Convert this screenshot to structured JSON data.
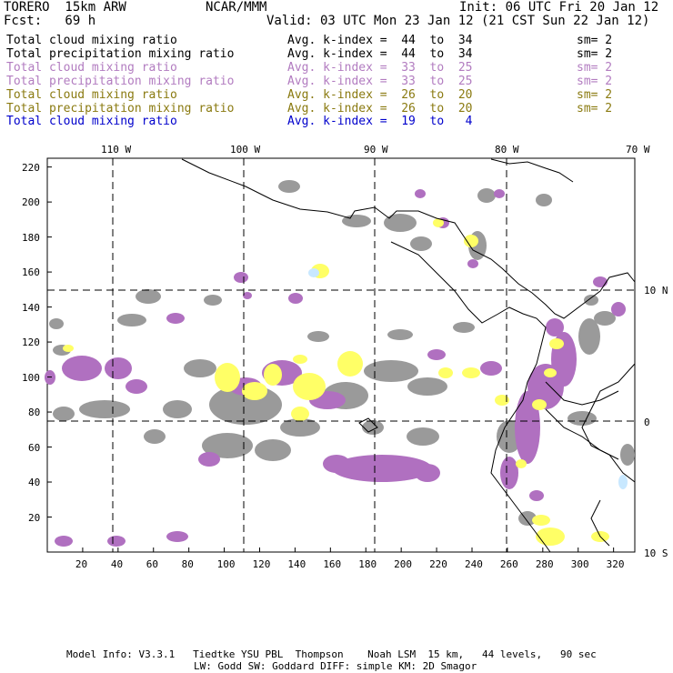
{
  "header": {
    "model": "TORERO  15km ARW",
    "center": "NCAR/MMM",
    "init": "Init: 06 UTC Fri 20 Jan 12",
    "fcst": "Fcst:   69 h",
    "valid": "Valid: 03 UTC Mon 23 Jan 12 (21 CST Sun 22 Jan 12)"
  },
  "legend": [
    {
      "field": "Total cloud mixing ratio",
      "index": "Avg. k-index =  44  to  34",
      "sm": "sm= 2",
      "color": "#000000"
    },
    {
      "field": "Total precipitation mixing ratio",
      "index": "Avg. k-index =  44  to  34",
      "sm": "sm= 2",
      "color": "#000000"
    },
    {
      "field": "Total cloud mixing ratio",
      "index": "Avg. k-index =  33  to  25",
      "sm": "sm= 2",
      "color": "#b27cc0"
    },
    {
      "field": "Total precipitation mixing ratio",
      "index": "Avg. k-index =  33  to  25",
      "sm": "sm= 2",
      "color": "#b27cc0"
    },
    {
      "field": "Total cloud mixing ratio",
      "index": "Avg. k-index =  26  to  20",
      "sm": "sm= 2",
      "color": "#8a7a10"
    },
    {
      "field": "Total precipitation mixing ratio",
      "index": "Avg. k-index =  26  to  20",
      "sm": "sm= 2",
      "color": "#8a7a10"
    },
    {
      "field": "Total cloud mixing ratio",
      "index": "Avg. k-index =  19  to   4",
      "sm": "",
      "color": "#0000cc"
    }
  ],
  "axes": {
    "top_lon": [
      "110 W",
      "100 W",
      "90 W",
      "80 W",
      "70 W"
    ],
    "right_lat": [
      "10 N",
      "0",
      "10 S"
    ],
    "x_ticks": [
      "20",
      "40",
      "60",
      "80",
      "100",
      "120",
      "140",
      "160",
      "180",
      "200",
      "220",
      "240",
      "260",
      "280",
      "300",
      "320"
    ],
    "y_ticks": [
      "220",
      "200",
      "180",
      "160",
      "140",
      "120",
      "100",
      "80",
      "60",
      "40",
      "20"
    ]
  },
  "colors": {
    "gray": "#9a9a9a",
    "purple": "#b070c0",
    "yellow": "#ffff66",
    "lightblue": "#c8e8ff"
  },
  "footer": {
    "line1": "Model Info: V3.3.1   Tiedtke YSU PBL  Thompson    Noah LSM  15 km,   44 levels,   90 sec",
    "line2": "LW: Godd SW: Goddard DIFF: simple KM: 2D Smagor"
  }
}
